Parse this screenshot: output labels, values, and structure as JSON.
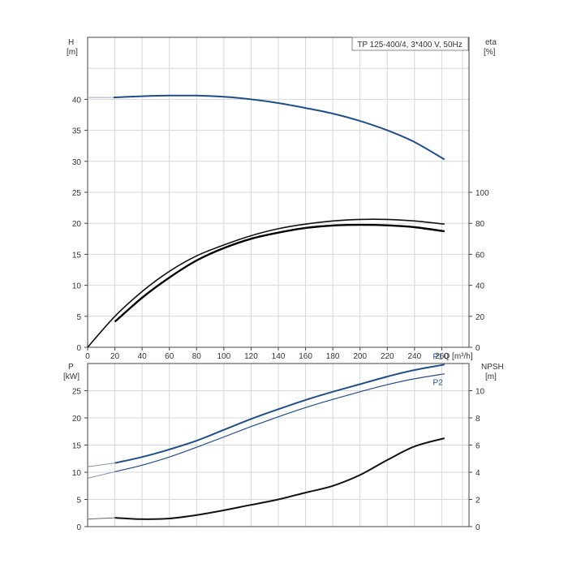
{
  "title": "TP 125-400/4, 3*400 V, 50Hz",
  "chart_data": [
    {
      "type": "line",
      "panel": "upper",
      "xlabel": "Q [m³/h]",
      "x_ticks": [
        0,
        20,
        40,
        60,
        80,
        100,
        120,
        140,
        160,
        180,
        200,
        220,
        240,
        260
      ],
      "xlim": [
        0,
        280
      ],
      "y_left": {
        "label_top": "H",
        "label_unit": "[m]",
        "ticks": [
          0,
          5,
          10,
          15,
          20,
          25,
          30,
          35,
          40
        ],
        "lim": [
          0,
          50
        ]
      },
      "y_right": {
        "label_top": "eta",
        "label_unit": "[%]",
        "ticks": [
          0,
          20,
          40,
          60,
          80,
          100
        ],
        "lim": [
          0,
          100
        ]
      },
      "grid": true,
      "series": [
        {
          "key": "H",
          "axis": "left",
          "color": "#1f4e8c",
          "x": [
            19,
            40,
            60,
            80,
            100,
            120,
            140,
            160,
            180,
            200,
            220,
            240,
            262
          ],
          "y": [
            40.3,
            40.5,
            40.6,
            40.6,
            40.4,
            40.0,
            39.4,
            38.6,
            37.7,
            36.5,
            35.0,
            33.1,
            30.3
          ]
        },
        {
          "key": "eta_a",
          "axis": "right",
          "color": "#111111",
          "x": [
            0,
            20,
            40,
            60,
            80,
            100,
            120,
            140,
            160,
            180,
            200,
            220,
            240,
            262
          ],
          "y": [
            0,
            20,
            36,
            49,
            59,
            66,
            72,
            76.5,
            79.5,
            81.5,
            82.5,
            82.5,
            81.5,
            79.5
          ]
        },
        {
          "key": "eta_b",
          "axis": "right",
          "color": "#000000",
          "x": [
            20,
            40,
            60,
            80,
            100,
            120,
            140,
            160,
            180,
            200,
            220,
            240,
            262
          ],
          "y": [
            16.5,
            32,
            45,
            56,
            64,
            70,
            74,
            77,
            78.6,
            79.0,
            78.7,
            77.5,
            74.8
          ]
        }
      ]
    },
    {
      "type": "line",
      "panel": "lower",
      "xlim": [
        0,
        280
      ],
      "y_left": {
        "label_top": "P",
        "label_unit": "[kW]",
        "ticks": [
          0,
          5,
          10,
          15,
          20,
          25
        ],
        "lim": [
          0,
          30
        ]
      },
      "y_right": {
        "label_top": "NPSH",
        "label_unit": "[m]",
        "ticks": [
          0,
          2,
          4,
          6,
          8,
          10
        ],
        "lim": [
          0,
          12
        ]
      },
      "grid": true,
      "series": [
        {
          "name": "P1",
          "axis": "left",
          "color": "#1f4e8c",
          "x": [
            20,
            40,
            60,
            80,
            100,
            120,
            140,
            160,
            180,
            200,
            220,
            240,
            262
          ],
          "y": [
            11.7,
            12.8,
            14.2,
            15.8,
            17.8,
            19.8,
            21.6,
            23.3,
            24.8,
            26.2,
            27.6,
            28.8,
            29.8
          ]
        },
        {
          "name": "P2",
          "axis": "left",
          "color": "#1f4e8c",
          "x": [
            20,
            40,
            60,
            80,
            100,
            120,
            140,
            160,
            180,
            200,
            220,
            240,
            262
          ],
          "y": [
            10.1,
            11.3,
            12.8,
            14.6,
            16.5,
            18.4,
            20.2,
            21.9,
            23.4,
            24.8,
            26.1,
            27.2,
            28.1
          ]
        },
        {
          "key": "NPSH",
          "axis": "right",
          "color": "#111111",
          "x": [
            20,
            40,
            60,
            80,
            100,
            120,
            140,
            160,
            180,
            200,
            220,
            240,
            262
          ],
          "y": [
            0.65,
            0.55,
            0.6,
            0.85,
            1.2,
            1.6,
            2.0,
            2.5,
            3.0,
            3.8,
            4.9,
            5.9,
            6.5
          ]
        }
      ]
    }
  ]
}
